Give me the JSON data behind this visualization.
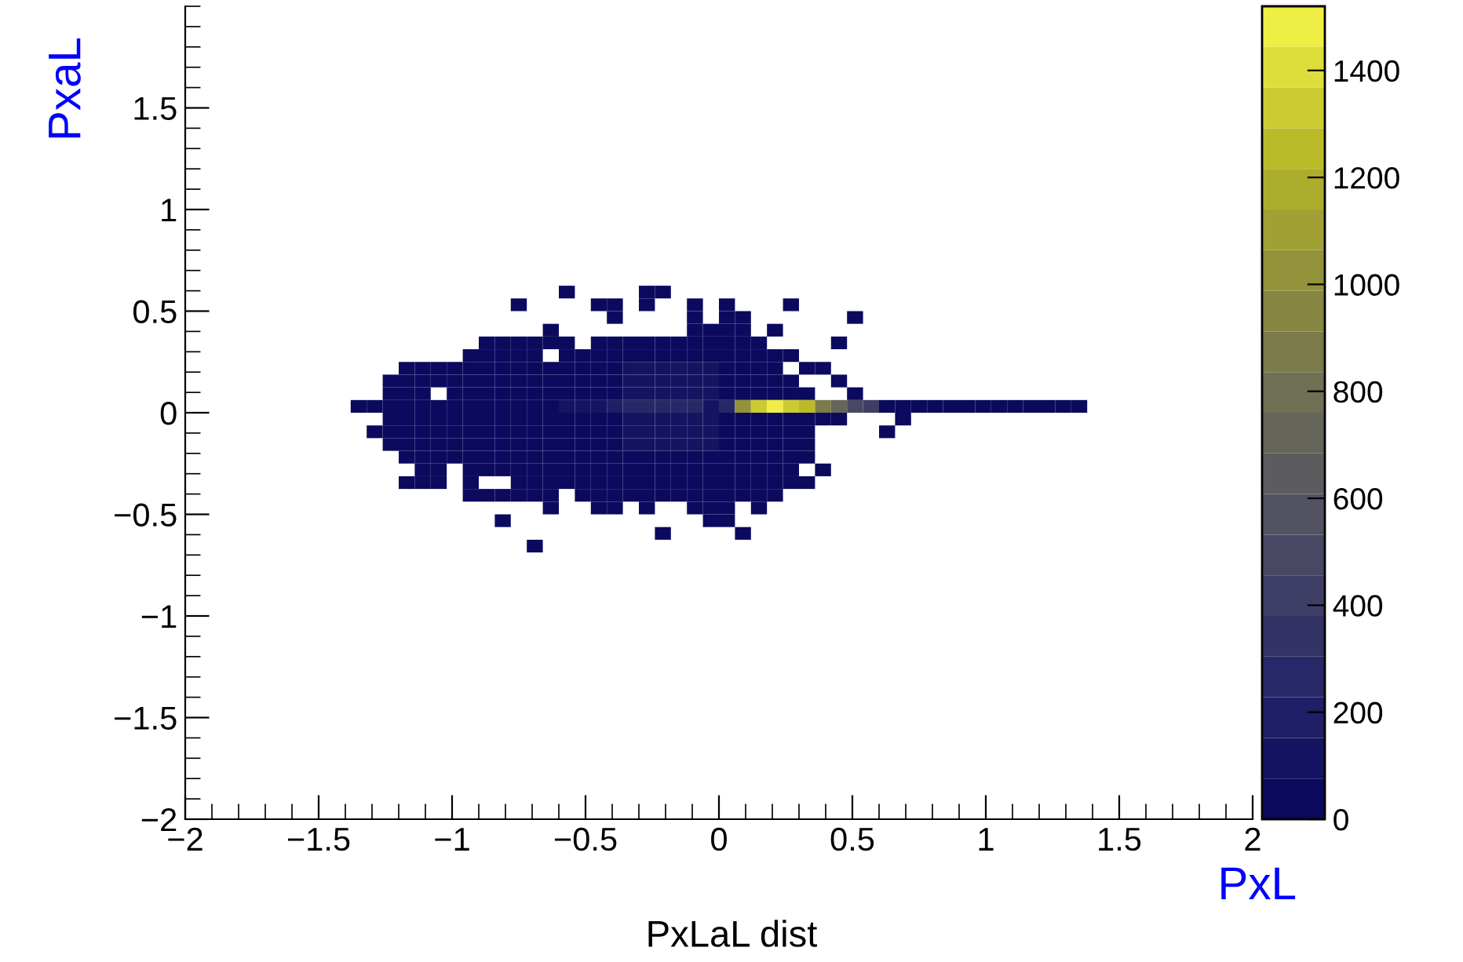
{
  "chart_data": {
    "type": "heatmap",
    "title": "PxLaL dist",
    "xlabel": "PxL",
    "ylabel": "PxaL",
    "x": [
      -1.35,
      -1.29,
      -1.23,
      -1.17,
      -1.11,
      -1.05,
      -0.99,
      -0.93,
      -0.87,
      -0.81,
      -0.75,
      -0.69,
      -0.63,
      -0.57,
      -0.51,
      -0.45,
      -0.39,
      -0.33,
      -0.27,
      -0.21,
      -0.15,
      -0.09,
      -0.03,
      0.03,
      0.09,
      0.15,
      0.21,
      0.27,
      0.33,
      0.39,
      0.45,
      0.51,
      0.57,
      0.63,
      0.69,
      0.75,
      0.81,
      0.87,
      0.93,
      0.99,
      1.05,
      1.11,
      1.17,
      1.23,
      1.29,
      1.35
    ],
    "y": [
      0.59375,
      0.53125,
      0.46875,
      0.40625,
      0.34375,
      0.28125,
      0.21875,
      0.15625,
      0.09375,
      0.03125,
      -0.03125,
      -0.09375,
      -0.15625,
      -0.21875,
      -0.28125,
      -0.34375,
      -0.40625,
      -0.46875,
      -0.53125,
      -0.59375,
      -0.65625
    ],
    "cells": [
      [
        null,
        null,
        null,
        null,
        null,
        null,
        null,
        null,
        null,
        null,
        null,
        null,
        null,
        20,
        null,
        null,
        null,
        null,
        20,
        20,
        null,
        null,
        null,
        null,
        null,
        null,
        null,
        null,
        null,
        null,
        null,
        null,
        null,
        null,
        null,
        null,
        null,
        null,
        null,
        null,
        null,
        null,
        null,
        null,
        null,
        null
      ],
      [
        null,
        null,
        null,
        null,
        null,
        null,
        null,
        null,
        null,
        null,
        20,
        null,
        null,
        null,
        null,
        20,
        20,
        null,
        20,
        null,
        null,
        20,
        null,
        20,
        null,
        null,
        null,
        20,
        null,
        null,
        null,
        null,
        null,
        null,
        null,
        null,
        null,
        null,
        null,
        null,
        null,
        null,
        null,
        null,
        null,
        null
      ],
      [
        null,
        null,
        null,
        null,
        null,
        null,
        null,
        null,
        null,
        null,
        null,
        null,
        null,
        null,
        null,
        null,
        20,
        null,
        null,
        null,
        null,
        20,
        null,
        20,
        20,
        null,
        null,
        null,
        null,
        null,
        null,
        20,
        null,
        null,
        null,
        null,
        null,
        null,
        null,
        null,
        null,
        null,
        null,
        null,
        null,
        null
      ],
      [
        null,
        null,
        null,
        null,
        null,
        null,
        null,
        null,
        null,
        null,
        null,
        null,
        20,
        null,
        null,
        null,
        null,
        null,
        null,
        null,
        null,
        20,
        20,
        20,
        20,
        null,
        20,
        null,
        null,
        null,
        null,
        null,
        null,
        null,
        null,
        null,
        null,
        null,
        null,
        null,
        null,
        null,
        null,
        null,
        null,
        null
      ],
      [
        null,
        null,
        null,
        null,
        null,
        null,
        null,
        null,
        20,
        20,
        20,
        20,
        20,
        20,
        null,
        20,
        20,
        20,
        20,
        20,
        20,
        20,
        20,
        20,
        20,
        20,
        null,
        null,
        null,
        null,
        20,
        null,
        null,
        null,
        null,
        null,
        null,
        null,
        null,
        null,
        null,
        null,
        null,
        null,
        null,
        null
      ],
      [
        null,
        null,
        null,
        null,
        null,
        null,
        null,
        20,
        20,
        20,
        20,
        20,
        null,
        20,
        20,
        20,
        20,
        20,
        20,
        60,
        60,
        20,
        20,
        20,
        20,
        20,
        20,
        20,
        null,
        null,
        null,
        null,
        null,
        null,
        null,
        null,
        null,
        null,
        null,
        null,
        null,
        null,
        null,
        null,
        null,
        null
      ],
      [
        null,
        null,
        null,
        20,
        20,
        20,
        20,
        20,
        20,
        20,
        20,
        20,
        20,
        20,
        20,
        20,
        20,
        100,
        100,
        100,
        100,
        100,
        100,
        20,
        20,
        20,
        20,
        null,
        20,
        20,
        null,
        null,
        null,
        null,
        null,
        null,
        null,
        null,
        null,
        null,
        null,
        null,
        null,
        null,
        null,
        null
      ],
      [
        null,
        null,
        20,
        20,
        20,
        20,
        20,
        20,
        20,
        20,
        20,
        20,
        20,
        20,
        20,
        20,
        20,
        100,
        100,
        100,
        100,
        100,
        100,
        20,
        20,
        20,
        20,
        20,
        null,
        null,
        20,
        null,
        null,
        null,
        null,
        null,
        null,
        null,
        null,
        null,
        null,
        null,
        null,
        null,
        null,
        null
      ],
      [
        null,
        null,
        20,
        20,
        20,
        null,
        20,
        20,
        20,
        20,
        20,
        20,
        20,
        20,
        20,
        20,
        20,
        100,
        100,
        100,
        100,
        100,
        100,
        20,
        20,
        20,
        20,
        20,
        20,
        null,
        null,
        20,
        null,
        null,
        null,
        null,
        null,
        null,
        null,
        null,
        null,
        null,
        null,
        null,
        null,
        null
      ],
      [
        20,
        20,
        20,
        20,
        20,
        20,
        20,
        20,
        20,
        20,
        20,
        20,
        20,
        80,
        100,
        150,
        200,
        250,
        300,
        300,
        300,
        250,
        150,
        300,
        1000,
        1300,
        1480,
        1350,
        1250,
        900,
        700,
        500,
        400,
        50,
        50,
        50,
        50,
        50,
        50,
        50,
        50,
        50,
        50,
        50,
        50,
        50
      ],
      [
        null,
        null,
        20,
        20,
        20,
        20,
        20,
        20,
        20,
        20,
        20,
        20,
        20,
        20,
        20,
        20,
        20,
        100,
        100,
        100,
        100,
        100,
        100,
        20,
        20,
        20,
        20,
        20,
        20,
        20,
        20,
        null,
        null,
        null,
        20,
        null,
        null,
        null,
        null,
        null,
        null,
        null,
        null,
        null,
        null,
        null
      ],
      [
        null,
        20,
        20,
        20,
        20,
        20,
        20,
        20,
        20,
        20,
        20,
        20,
        20,
        20,
        20,
        20,
        20,
        100,
        100,
        100,
        100,
        100,
        100,
        20,
        20,
        20,
        20,
        20,
        20,
        null,
        null,
        null,
        null,
        20,
        null,
        null,
        null,
        null,
        null,
        null,
        null,
        null,
        null,
        null,
        null,
        null
      ],
      [
        null,
        null,
        20,
        20,
        20,
        20,
        20,
        20,
        20,
        20,
        20,
        20,
        20,
        20,
        20,
        20,
        20,
        100,
        100,
        100,
        100,
        100,
        100,
        20,
        20,
        20,
        20,
        20,
        20,
        null,
        null,
        null,
        null,
        null,
        null,
        null,
        null,
        null,
        null,
        null,
        null,
        null,
        null,
        null,
        null,
        null
      ],
      [
        null,
        null,
        null,
        20,
        20,
        20,
        20,
        20,
        20,
        20,
        20,
        20,
        20,
        20,
        20,
        20,
        20,
        20,
        20,
        60,
        60,
        20,
        20,
        20,
        20,
        20,
        20,
        20,
        20,
        null,
        null,
        null,
        null,
        null,
        null,
        null,
        null,
        null,
        null,
        null,
        null,
        null,
        null,
        null,
        null,
        null
      ],
      [
        null,
        null,
        null,
        null,
        20,
        20,
        null,
        20,
        20,
        20,
        20,
        20,
        20,
        20,
        20,
        20,
        20,
        20,
        20,
        20,
        20,
        20,
        20,
        20,
        20,
        20,
        20,
        20,
        null,
        20,
        null,
        null,
        null,
        null,
        null,
        null,
        null,
        null,
        null,
        null,
        null,
        null,
        null,
        null,
        null,
        null
      ],
      [
        null,
        null,
        null,
        20,
        20,
        20,
        null,
        20,
        null,
        null,
        20,
        20,
        20,
        20,
        20,
        20,
        20,
        20,
        20,
        20,
        20,
        20,
        20,
        20,
        20,
        20,
        20,
        20,
        20,
        null,
        null,
        null,
        null,
        null,
        null,
        null,
        null,
        null,
        null,
        null,
        null,
        null,
        null,
        null,
        null,
        null
      ],
      [
        null,
        null,
        null,
        null,
        null,
        null,
        null,
        20,
        20,
        20,
        20,
        20,
        20,
        null,
        20,
        20,
        20,
        20,
        20,
        20,
        20,
        20,
        20,
        20,
        20,
        20,
        20,
        null,
        null,
        null,
        null,
        null,
        null,
        null,
        null,
        null,
        null,
        null,
        null,
        null,
        null,
        null,
        null,
        null,
        null,
        null
      ],
      [
        null,
        null,
        null,
        null,
        null,
        null,
        null,
        null,
        null,
        null,
        null,
        null,
        20,
        null,
        null,
        20,
        20,
        null,
        20,
        null,
        null,
        20,
        20,
        20,
        null,
        20,
        null,
        null,
        null,
        null,
        null,
        null,
        null,
        null,
        null,
        null,
        null,
        null,
        null,
        null,
        null,
        null,
        null,
        null,
        null,
        null
      ],
      [
        null,
        null,
        null,
        null,
        null,
        null,
        null,
        null,
        null,
        20,
        null,
        null,
        null,
        null,
        null,
        null,
        null,
        null,
        null,
        null,
        null,
        null,
        20,
        20,
        null,
        null,
        null,
        null,
        null,
        null,
        null,
        null,
        null,
        null,
        null,
        null,
        null,
        null,
        null,
        null,
        null,
        null,
        null,
        null,
        null,
        null
      ],
      [
        null,
        null,
        null,
        null,
        null,
        null,
        null,
        null,
        null,
        null,
        null,
        null,
        null,
        null,
        null,
        null,
        null,
        null,
        null,
        20,
        null,
        null,
        null,
        null,
        20,
        null,
        null,
        null,
        null,
        null,
        null,
        null,
        null,
        null,
        null,
        null,
        null,
        null,
        null,
        null,
        null,
        null,
        null,
        null,
        null,
        null
      ],
      [
        null,
        null,
        null,
        null,
        null,
        null,
        null,
        null,
        null,
        null,
        null,
        20,
        null,
        null,
        null,
        null,
        null,
        null,
        null,
        null,
        null,
        null,
        null,
        null,
        null,
        null,
        null,
        null,
        null,
        null,
        null,
        null,
        null,
        null,
        null,
        null,
        null,
        null,
        null,
        null,
        null,
        null,
        null,
        null,
        null,
        null
      ]
    ],
    "xlim": [
      -2,
      2
    ],
    "ylim": [
      -2,
      2
    ],
    "xticks": [
      {
        "value": -2,
        "label": "−2"
      },
      {
        "value": -1.5,
        "label": "−1.5"
      },
      {
        "value": -1,
        "label": "−1"
      },
      {
        "value": -0.5,
        "label": "−0.5"
      },
      0,
      0.5,
      1,
      1.5,
      2
    ],
    "yticks": [
      {
        "value": -2,
        "label": "−2"
      },
      {
        "value": -1.5,
        "label": "−1.5"
      },
      {
        "value": -1,
        "label": "−1"
      },
      {
        "value": -0.5,
        "label": "−0.5"
      },
      0,
      0.5,
      1,
      1.5
    ],
    "clim": [
      0,
      1520
    ],
    "cticks": [
      0,
      200,
      400,
      600,
      800,
      1000,
      1200,
      1400
    ],
    "grid": false
  }
}
